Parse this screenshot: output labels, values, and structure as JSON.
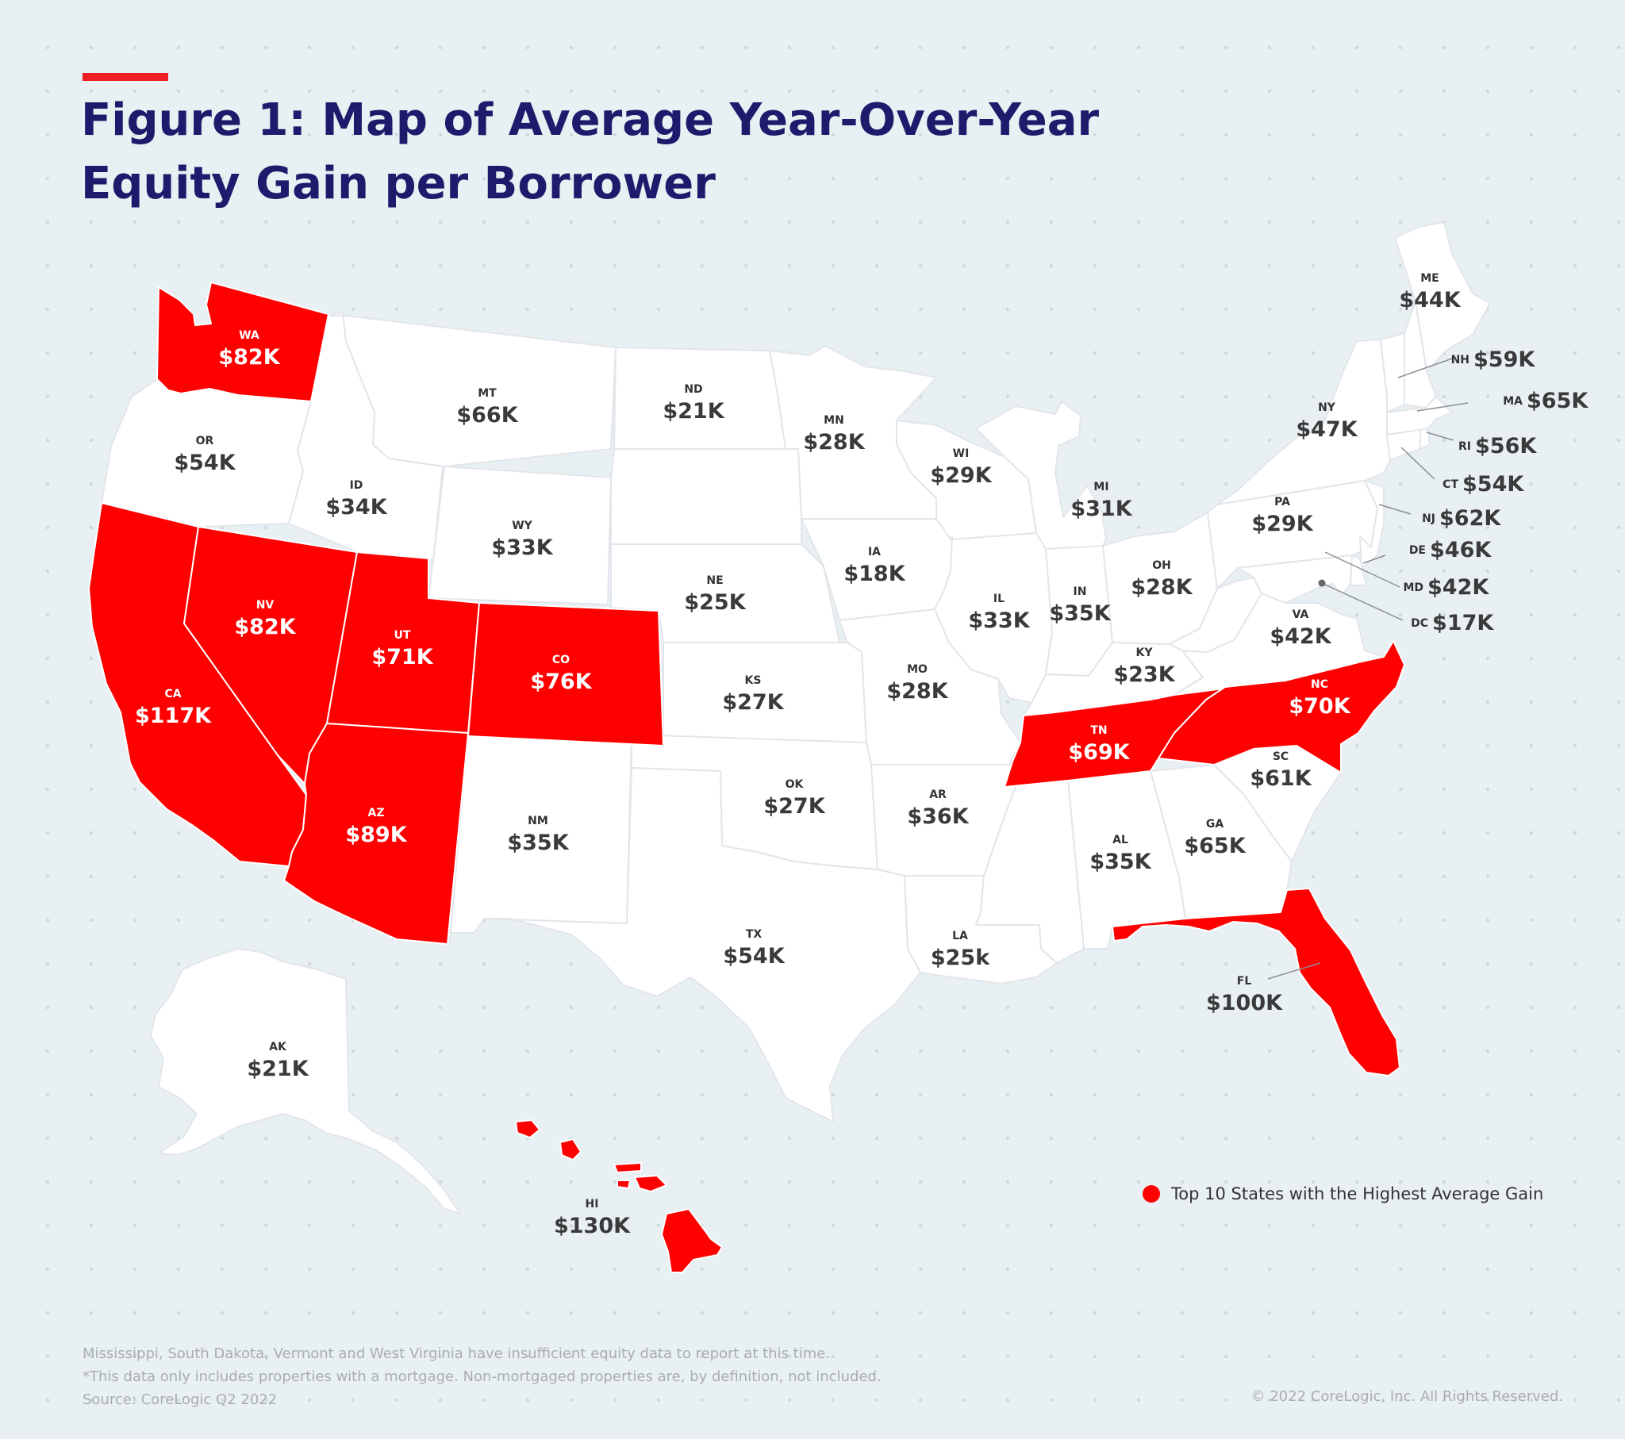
{
  "title": {
    "line1": "Figure 1: Map of Average Year-Over-Year",
    "line2": "Equity Gain per Borrower"
  },
  "colors": {
    "highlight": "#ff0000",
    "title": "#1f1a6b",
    "accent": "#ee1c25",
    "background": "#e9f0f3",
    "base_state": "#ffffff"
  },
  "states": {
    "WA": {
      "abbr": "WA",
      "value": "$82K",
      "top10": true
    },
    "OR": {
      "abbr": "OR",
      "value": "$54K",
      "top10": false
    },
    "CA": {
      "abbr": "CA",
      "value": "$117K",
      "top10": true
    },
    "NV": {
      "abbr": "NV",
      "value": "$82K",
      "top10": true
    },
    "ID": {
      "abbr": "ID",
      "value": "$34K",
      "top10": false
    },
    "MT": {
      "abbr": "MT",
      "value": "$66K",
      "top10": false
    },
    "WY": {
      "abbr": "WY",
      "value": "$33K",
      "top10": false
    },
    "UT": {
      "abbr": "UT",
      "value": "$71K",
      "top10": true
    },
    "CO": {
      "abbr": "CO",
      "value": "$76K",
      "top10": true
    },
    "AZ": {
      "abbr": "AZ",
      "value": "$89K",
      "top10": true
    },
    "NM": {
      "abbr": "NM",
      "value": "$35K",
      "top10": false
    },
    "ND": {
      "abbr": "ND",
      "value": "$21K",
      "top10": false
    },
    "NE": {
      "abbr": "NE",
      "value": "$25K",
      "top10": false
    },
    "KS": {
      "abbr": "KS",
      "value": "$27K",
      "top10": false
    },
    "OK": {
      "abbr": "OK",
      "value": "$27K",
      "top10": false
    },
    "TX": {
      "abbr": "TX",
      "value": "$54K",
      "top10": false
    },
    "MN": {
      "abbr": "MN",
      "value": "$28K",
      "top10": false
    },
    "IA": {
      "abbr": "IA",
      "value": "$18K",
      "top10": false
    },
    "MO": {
      "abbr": "MO",
      "value": "$28K",
      "top10": false
    },
    "AR": {
      "abbr": "AR",
      "value": "$36K",
      "top10": false
    },
    "LA": {
      "abbr": "LA",
      "value": "$25k",
      "top10": false
    },
    "WI": {
      "abbr": "WI",
      "value": "$29K",
      "top10": false
    },
    "IL": {
      "abbr": "IL",
      "value": "$33K",
      "top10": false
    },
    "MI": {
      "abbr": "MI",
      "value": "$31K",
      "top10": false
    },
    "IN": {
      "abbr": "IN",
      "value": "$35K",
      "top10": false
    },
    "OH": {
      "abbr": "OH",
      "value": "$28K",
      "top10": false
    },
    "KY": {
      "abbr": "KY",
      "value": "$23K",
      "top10": false
    },
    "TN": {
      "abbr": "TN",
      "value": "$69K",
      "top10": true
    },
    "AL": {
      "abbr": "AL",
      "value": "$35K",
      "top10": false
    },
    "GA": {
      "abbr": "GA",
      "value": "$65K",
      "top10": false
    },
    "FL": {
      "abbr": "FL",
      "value": "$100K",
      "top10": true
    },
    "SC": {
      "abbr": "SC",
      "value": "$61K",
      "top10": false
    },
    "NC": {
      "abbr": "NC",
      "value": "$70K",
      "top10": true
    },
    "VA": {
      "abbr": "VA",
      "value": "$42K",
      "top10": false
    },
    "PA": {
      "abbr": "PA",
      "value": "$29K",
      "top10": false
    },
    "NY": {
      "abbr": "NY",
      "value": "$47K",
      "top10": false
    },
    "ME": {
      "abbr": "ME",
      "value": "$44K",
      "top10": false
    },
    "NH": {
      "abbr": "NH",
      "value": "$59K",
      "top10": false
    },
    "MA": {
      "abbr": "MA",
      "value": "$65K",
      "top10": false
    },
    "RI": {
      "abbr": "RI",
      "value": "$56K",
      "top10": false
    },
    "CT": {
      "abbr": "CT",
      "value": "$54K",
      "top10": false
    },
    "NJ": {
      "abbr": "NJ",
      "value": "$62K",
      "top10": false
    },
    "DE": {
      "abbr": "DE",
      "value": "$46K",
      "top10": false
    },
    "MD": {
      "abbr": "MD",
      "value": "$42K",
      "top10": false
    },
    "DC": {
      "abbr": "DC",
      "value": "$17K",
      "top10": false
    },
    "AK": {
      "abbr": "AK",
      "value": "$21K",
      "top10": false
    },
    "HI": {
      "abbr": "HI",
      "value": "$130K",
      "top10": true
    }
  },
  "legend": {
    "label": "Top 10 States with the Highest Average Gain"
  },
  "footnotes": {
    "line1": "Mississippi, South Dakota, Vermont and West Virginia  have insufficient equity data to report at this time.",
    "line2": "*This data only includes properties with a mortgage. Non-mortgaged properties are, by definition, not included.",
    "line3": "Source: CoreLogic Q2 2022"
  },
  "copyright": "© 2022 CoreLogic, Inc. All Rights Reserved."
}
